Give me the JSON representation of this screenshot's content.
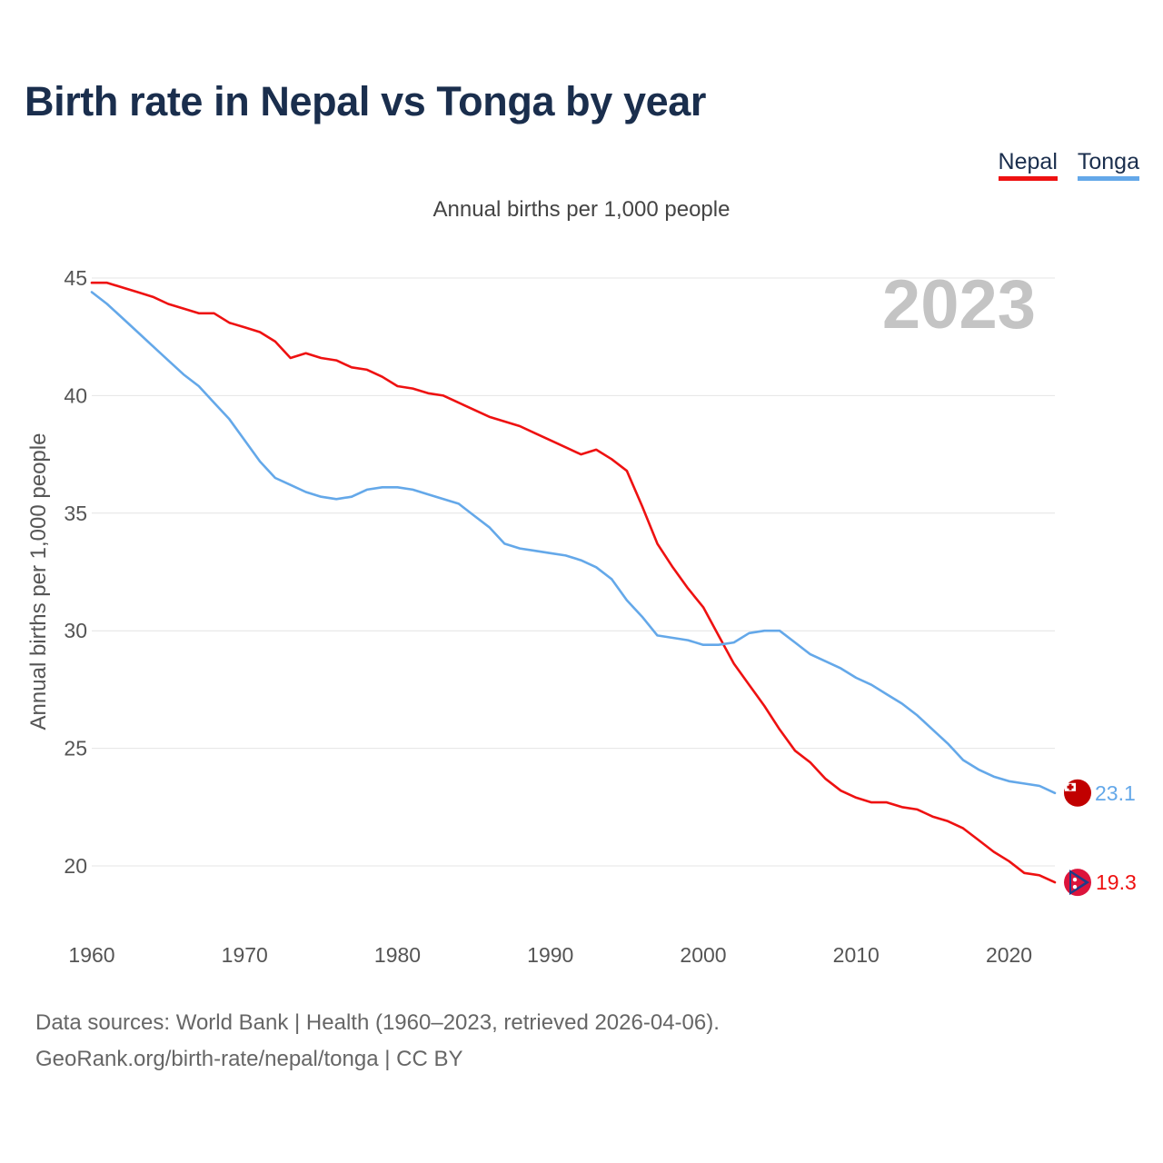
{
  "header": {
    "title": "Birth rate in Nepal vs Tonga by year",
    "subtitle": "Annual births per 1,000 people"
  },
  "legend": {
    "nepal_label": "Nepal",
    "tonga_label": "Tonga"
  },
  "footer": {
    "line1": "Data sources: World Bank | Health (1960–2023, retrieved 2026-04-06).",
    "line2": "GeoRank.org/birth-rate/nepal/tonga | CC BY"
  },
  "colors": {
    "nepal": "#ee1111",
    "tonga": "#64a8e9",
    "grid": "#e4e4e4",
    "axis_text": "#555555",
    "watermark": "#c4c4c4"
  },
  "chart_data": {
    "type": "line",
    "title": "Birth rate in Nepal vs Tonga by year",
    "xlabel": "",
    "ylabel": "Annual births per 1,000 people",
    "current_year_label": "2023",
    "xlim": [
      1960,
      2023
    ],
    "ylim": [
      18,
      45.5
    ],
    "xticks": [
      1960,
      1970,
      1980,
      1990,
      2000,
      2010,
      2020
    ],
    "yticks": [
      20,
      25,
      30,
      35,
      40,
      45
    ],
    "grid": true,
    "legend_position": "top-right",
    "x": [
      1960,
      1961,
      1962,
      1963,
      1964,
      1965,
      1966,
      1967,
      1968,
      1969,
      1970,
      1971,
      1972,
      1973,
      1974,
      1975,
      1976,
      1977,
      1978,
      1979,
      1980,
      1981,
      1982,
      1983,
      1984,
      1985,
      1986,
      1987,
      1988,
      1989,
      1990,
      1991,
      1992,
      1993,
      1994,
      1995,
      1996,
      1997,
      1998,
      1999,
      2000,
      2001,
      2002,
      2003,
      2004,
      2005,
      2006,
      2007,
      2008,
      2009,
      2010,
      2011,
      2012,
      2013,
      2014,
      2015,
      2016,
      2017,
      2018,
      2019,
      2020,
      2021,
      2022,
      2023
    ],
    "series": [
      {
        "name": "Nepal",
        "color": "#ee1111",
        "end_label": "19.3",
        "values": [
          44.8,
          44.8,
          44.6,
          44.4,
          44.2,
          43.9,
          43.7,
          43.5,
          43.5,
          43.1,
          42.9,
          42.7,
          42.3,
          41.6,
          41.8,
          41.6,
          41.5,
          41.2,
          41.1,
          40.8,
          40.4,
          40.3,
          40.1,
          40.0,
          39.7,
          39.4,
          39.1,
          38.9,
          38.7,
          38.4,
          38.1,
          37.8,
          37.5,
          37.7,
          37.3,
          36.8,
          35.3,
          33.7,
          32.7,
          31.8,
          31.0,
          29.8,
          28.6,
          27.7,
          26.8,
          25.8,
          24.9,
          24.4,
          23.7,
          23.2,
          22.9,
          22.7,
          22.7,
          22.5,
          22.4,
          22.1,
          21.9,
          21.6,
          21.1,
          20.6,
          20.2,
          19.7,
          19.6,
          19.3
        ]
      },
      {
        "name": "Tonga",
        "color": "#64a8e9",
        "end_label": "23.1",
        "values": [
          44.4,
          43.9,
          43.3,
          42.7,
          42.1,
          41.5,
          40.9,
          40.4,
          39.7,
          39.0,
          38.1,
          37.2,
          36.5,
          36.2,
          35.9,
          35.7,
          35.6,
          35.7,
          36.0,
          36.1,
          36.1,
          36.0,
          35.8,
          35.6,
          35.4,
          34.9,
          34.4,
          33.7,
          33.5,
          33.4,
          33.3,
          33.2,
          33.0,
          32.7,
          32.2,
          31.3,
          30.6,
          29.8,
          29.7,
          29.6,
          29.4,
          29.4,
          29.5,
          29.9,
          30.0,
          30.0,
          29.5,
          29.0,
          28.7,
          28.4,
          28.0,
          27.7,
          27.3,
          26.9,
          26.4,
          25.8,
          25.2,
          24.5,
          24.1,
          23.8,
          23.6,
          23.5,
          23.4,
          23.1
        ]
      }
    ]
  }
}
